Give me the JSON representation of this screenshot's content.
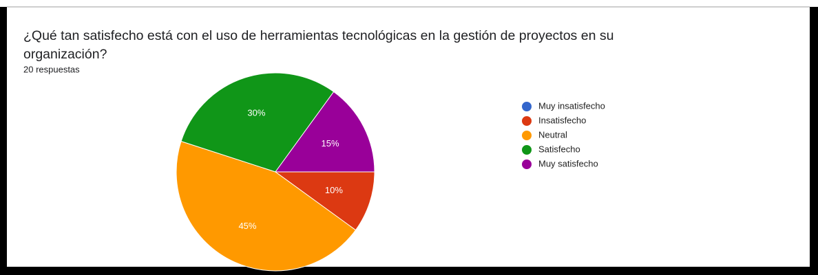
{
  "chart_data": {
    "type": "pie",
    "title": "¿Qué tan satisfecho está con el uso de herramientas tecnológicas en la gestión de proyectos en su organización?",
    "subtitle": "20 respuestas",
    "categories": [
      "Muy insatisfecho",
      "Insatisfecho",
      "Neutral",
      "Satisfecho",
      "Muy satisfecho"
    ],
    "values": [
      0,
      10,
      45,
      30,
      15
    ],
    "value_labels": [
      null,
      "10%",
      "45%",
      "30%",
      "15%"
    ],
    "colors": [
      "#3366cc",
      "#dc3912",
      "#ff9900",
      "#109618",
      "#990099"
    ],
    "legend": "right"
  }
}
